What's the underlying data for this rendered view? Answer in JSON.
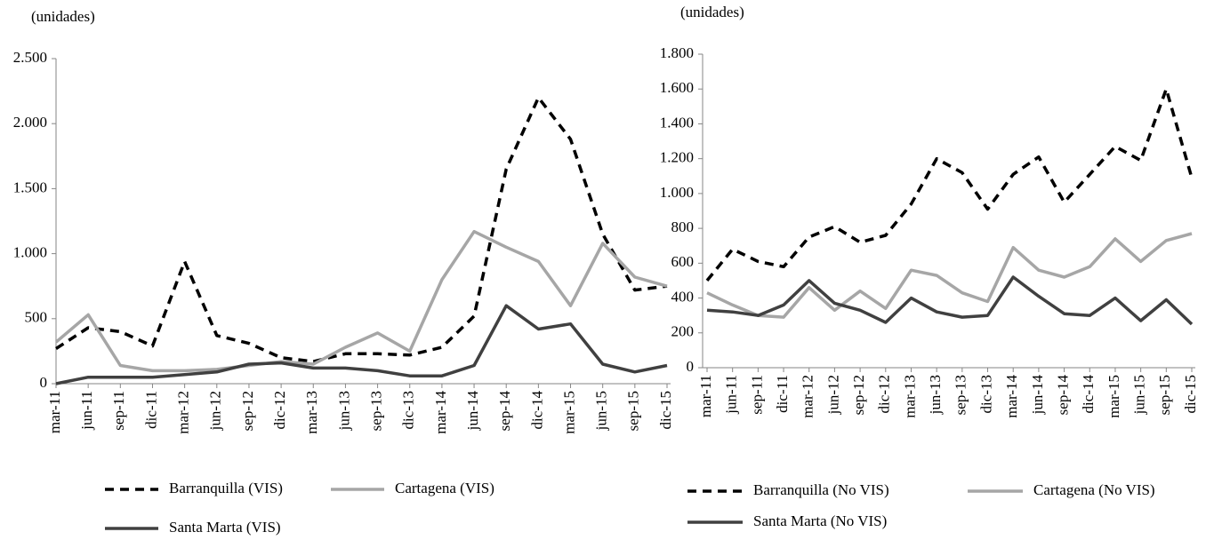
{
  "chart_data": [
    {
      "type": "line",
      "y_label": "(unidades)",
      "categories": [
        "mar-11",
        "jun-11",
        "sep-11",
        "dic-11",
        "mar-12",
        "jun-12",
        "sep-12",
        "dic-12",
        "mar-13",
        "jun-13",
        "sep-13",
        "dic-13",
        "mar-14",
        "jun-14",
        "sep-14",
        "dic-14",
        "mar-15",
        "jun-15",
        "sep-15",
        "dic-15"
      ],
      "ylim": [
        0,
        2500
      ],
      "yticks": [
        0,
        500,
        {
          "value": 1000,
          "label": "1.000"
        },
        {
          "value": 1500,
          "label": "1.500"
        },
        {
          "value": 2000,
          "label": "2.000"
        },
        {
          "value": 2500,
          "label": "2.500"
        }
      ],
      "series": [
        {
          "name": "Barranquilla (VIS)",
          "color": "#000000",
          "linestyle": "dashed",
          "values": [
            270,
            430,
            400,
            290,
            940,
            370,
            310,
            200,
            170,
            230,
            230,
            220,
            280,
            520,
            1650,
            2200,
            1880,
            1150,
            720,
            750
          ]
        },
        {
          "name": "Cartagena (VIS)",
          "color": "#a6a6a6",
          "linestyle": "solid",
          "values": [
            320,
            530,
            140,
            100,
            100,
            110,
            140,
            170,
            150,
            280,
            390,
            250,
            800,
            1170,
            1050,
            940,
            600,
            1080,
            820,
            750
          ]
        },
        {
          "name": "Santa Marta (VIS)",
          "color": "#404040",
          "linestyle": "solid",
          "values": [
            0,
            50,
            50,
            50,
            70,
            90,
            150,
            160,
            120,
            120,
            100,
            60,
            60,
            140,
            600,
            420,
            460,
            150,
            90,
            140
          ]
        }
      ]
    },
    {
      "type": "line",
      "y_label": "(unidades)",
      "categories": [
        "mar-11",
        "jun-11",
        "sep-11",
        "dic-11",
        "mar-12",
        "jun-12",
        "sep-12",
        "dic-12",
        "mar-13",
        "jun-13",
        "sep-13",
        "dic-13",
        "mar-14",
        "jun-14",
        "sep-14",
        "dic-14",
        "mar-15",
        "jun-15",
        "sep-15",
        "dic-15"
      ],
      "ylim": [
        0,
        1800
      ],
      "yticks": [
        0,
        200,
        400,
        600,
        800,
        {
          "value": 1000,
          "label": "1.000"
        },
        {
          "value": 1200,
          "label": "1.200"
        },
        {
          "value": 1400,
          "label": "1.400"
        },
        {
          "value": 1600,
          "label": "1.600"
        },
        {
          "value": 1800,
          "label": "1.800"
        }
      ],
      "series": [
        {
          "name": "Barranquilla (No VIS)",
          "color": "#000000",
          "linestyle": "dashed",
          "values": [
            500,
            680,
            610,
            580,
            750,
            810,
            720,
            760,
            940,
            1200,
            1120,
            910,
            1110,
            1210,
            950,
            1110,
            1270,
            1190,
            1600,
            1090
          ]
        },
        {
          "name": "Cartagena (No VIS)",
          "color": "#a6a6a6",
          "linestyle": "solid",
          "values": [
            430,
            360,
            300,
            290,
            460,
            330,
            440,
            340,
            560,
            530,
            430,
            380,
            690,
            560,
            520,
            580,
            740,
            610,
            730,
            770
          ]
        },
        {
          "name": "Santa Marta (No VIS)",
          "color": "#404040",
          "linestyle": "solid",
          "values": [
            330,
            320,
            300,
            360,
            500,
            370,
            330,
            260,
            400,
            320,
            290,
            300,
            520,
            410,
            310,
            300,
            400,
            270,
            390,
            250
          ]
        }
      ]
    }
  ]
}
